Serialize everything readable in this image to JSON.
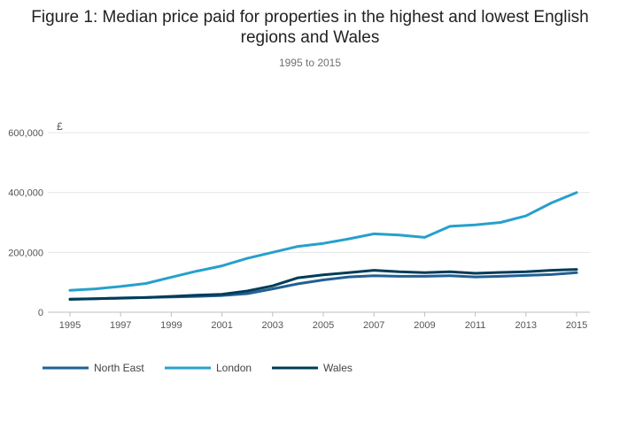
{
  "chart_data": {
    "type": "line",
    "title": "Figure 1: Median price paid for properties in the highest and lowest English regions and Wales",
    "subtitle": "1995 to 2015",
    "ylabel": "£",
    "xlim": [
      1995,
      2015
    ],
    "ylim": [
      0,
      600000
    ],
    "x_ticks": [
      1995,
      1997,
      1999,
      2001,
      2003,
      2005,
      2007,
      2009,
      2011,
      2013,
      2015
    ],
    "x_tick_labels": [
      "1995",
      "1997",
      "1999",
      "2001",
      "2003",
      "2005",
      "2007",
      "2009",
      "2011",
      "2013",
      "2015"
    ],
    "y_ticks": [
      0,
      200000,
      400000,
      600000
    ],
    "y_tick_labels": [
      "0",
      "200,000",
      "400,000",
      "600,000"
    ],
    "grid": true,
    "legend_position": "bottom-left",
    "x": [
      1995,
      1996,
      1997,
      1998,
      1999,
      2000,
      2001,
      2002,
      2003,
      2004,
      2005,
      2006,
      2007,
      2008,
      2009,
      2010,
      2011,
      2012,
      2013,
      2014,
      2015
    ],
    "series": [
      {
        "name": "North East",
        "color": "#206095",
        "values": [
          44000,
          45000,
          47500,
          49000,
          51000,
          53000,
          56000,
          62000,
          78000,
          95000,
          108000,
          118000,
          122000,
          120000,
          120000,
          122000,
          118000,
          120000,
          123000,
          126000,
          132000
        ]
      },
      {
        "name": "London",
        "color": "#27a0cc",
        "values": [
          73000,
          78000,
          86000,
          96000,
          117000,
          137000,
          155000,
          180000,
          200000,
          220000,
          230000,
          245000,
          262000,
          258000,
          250000,
          287000,
          292000,
          300000,
          322000,
          365000,
          400000
        ]
      },
      {
        "name": "Wales",
        "color": "#003c57",
        "values": [
          43000,
          45000,
          47000,
          49000,
          53000,
          57000,
          60000,
          71000,
          88000,
          115000,
          125000,
          132000,
          140000,
          135000,
          132000,
          135000,
          130000,
          133000,
          135000,
          140000,
          143000
        ]
      }
    ]
  }
}
